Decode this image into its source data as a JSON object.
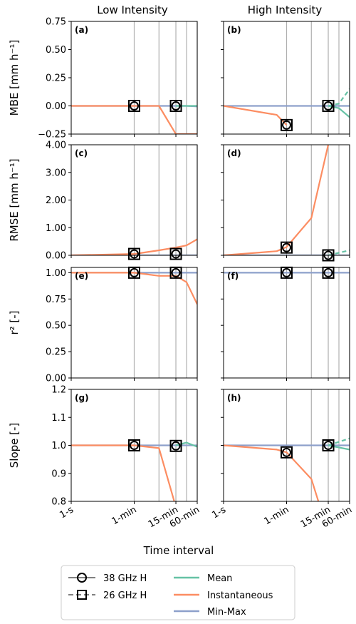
{
  "figure": {
    "col_titles": [
      "Low Intensity",
      "High Intensity"
    ],
    "xlabel": "Time interval",
    "x_ticks": [
      {
        "label": "1-s",
        "log_seconds": 0.0
      },
      {
        "label": "1-min",
        "log_seconds": 1.778
      },
      {
        "label": "15-min",
        "log_seconds": 2.954
      },
      {
        "label": "60-min",
        "log_seconds": 3.556
      }
    ],
    "x_grid_log_seconds": [
      1.778,
      2.477,
      2.954,
      3.255,
      3.556
    ],
    "xlim_log_seconds": [
      0,
      3.556
    ]
  },
  "legend": {
    "markers": [
      {
        "label": "38 GHz H",
        "symbol": "circle",
        "style": "solid"
      },
      {
        "label": "26 GHz H",
        "symbol": "square",
        "style": "dashed"
      }
    ],
    "methods": [
      {
        "label": "Mean",
        "color": "#66c2a5"
      },
      {
        "label": "Instantaneous",
        "color": "#fc8d62"
      },
      {
        "label": "Min-Max",
        "color": "#8da0cb"
      }
    ]
  },
  "colors": {
    "mean": "#66c2a5",
    "instantaneous": "#fc8d62",
    "minmax": "#8da0cb",
    "grid": "#b0b0b0"
  },
  "chart_data": [
    {
      "type": "line",
      "panel": "(a)",
      "ylabel": "MBE [mm h⁻¹]",
      "ylim": [
        -0.25,
        0.75
      ],
      "yticks": [
        -0.25,
        0,
        0.25,
        0.5,
        0.75
      ],
      "ytick_labels": [
        "−0.25",
        "0.00",
        "0.25",
        "0.50",
        "0.75"
      ],
      "series": [
        {
          "method": "minmax",
          "values": [
            [
              0,
              0
            ],
            [
              2.954,
              0
            ],
            [
              3.255,
              0
            ],
            [
              3.556,
              -0.005
            ]
          ]
        },
        {
          "method": "instantaneous",
          "values": [
            [
              0,
              0
            ],
            [
              2.477,
              0
            ],
            [
              2.954,
              -0.25
            ],
            [
              3.556,
              -0.25
            ]
          ]
        },
        {
          "method": "mean",
          "values": [
            [
              2.954,
              0
            ],
            [
              3.556,
              0
            ]
          ]
        }
      ],
      "markers": [
        [
          1.778,
          0
        ],
        [
          2.954,
          0
        ]
      ]
    },
    {
      "type": "line",
      "panel": "(b)",
      "ylabel": "",
      "ylim": [
        -0.25,
        0.75
      ],
      "yticks": [
        -0.25,
        0,
        0.25,
        0.5,
        0.75
      ],
      "ytick_labels": [
        "",
        "",
        "",
        "",
        ""
      ],
      "series": [
        {
          "method": "minmax",
          "values": [
            [
              0,
              0
            ],
            [
              2.954,
              0
            ],
            [
              3.556,
              0
            ]
          ]
        },
        {
          "method": "instantaneous",
          "values": [
            [
              0,
              0
            ],
            [
              1.5,
              -0.08
            ],
            [
              1.778,
              -0.17
            ]
          ]
        },
        {
          "method": "mean",
          "values": [
            [
              2.954,
              0
            ],
            [
              3.255,
              0.02
            ],
            [
              3.556,
              0.15
            ]
          ],
          "dashed": true
        },
        {
          "method": "mean",
          "values": [
            [
              2.954,
              0
            ],
            [
              3.255,
              -0.02
            ],
            [
              3.556,
              -0.1
            ]
          ]
        }
      ],
      "markers": [
        [
          1.778,
          -0.17
        ],
        [
          2.954,
          0
        ]
      ]
    },
    {
      "type": "line",
      "panel": "(c)",
      "ylabel": "RMSE [mm h⁻¹]",
      "ylim": [
        0,
        4
      ],
      "yticks": [
        0,
        1,
        2,
        3,
        4
      ],
      "ytick_labels": [
        "0.00",
        "1.00",
        "2.00",
        "3.00",
        "4.00"
      ],
      "series": [
        {
          "method": "minmax",
          "values": [
            [
              0,
              0
            ],
            [
              3.556,
              0
            ]
          ]
        },
        {
          "method": "instantaneous",
          "values": [
            [
              0,
              0
            ],
            [
              1.778,
              0.05
            ],
            [
              2.477,
              0.18
            ],
            [
              2.954,
              0.28
            ],
            [
              3.255,
              0.36
            ],
            [
              3.556,
              0.58
            ]
          ]
        }
      ],
      "markers": [
        [
          1.778,
          0.05
        ],
        [
          2.954,
          0.05
        ]
      ]
    },
    {
      "type": "line",
      "panel": "(d)",
      "ylabel": "",
      "ylim": [
        0,
        4
      ],
      "yticks": [
        0,
        1,
        2,
        3,
        4
      ],
      "ytick_labels": [
        "",
        "",
        "",
        "",
        ""
      ],
      "series": [
        {
          "method": "minmax",
          "values": [
            [
              0,
              0
            ],
            [
              3.556,
              0
            ]
          ]
        },
        {
          "method": "instantaneous",
          "values": [
            [
              0,
              0
            ],
            [
              1.5,
              0.15
            ],
            [
              1.778,
              0.3
            ],
            [
              2.477,
              1.35
            ],
            [
              2.954,
              4.0
            ]
          ]
        },
        {
          "method": "mean",
          "values": [
            [
              2.954,
              0
            ],
            [
              3.556,
              0.18
            ]
          ],
          "dashed": true
        }
      ],
      "markers": [
        [
          1.778,
          0.28
        ],
        [
          2.954,
          0
        ]
      ]
    },
    {
      "type": "line",
      "panel": "(e)",
      "ylabel": "r² [-]",
      "ylim": [
        0,
        1.05
      ],
      "yticks": [
        0,
        0.25,
        0.5,
        0.75,
        1
      ],
      "ytick_labels": [
        "0.00",
        "0.25",
        "0.50",
        "0.75",
        "1.00"
      ],
      "series": [
        {
          "method": "minmax",
          "values": [
            [
              0,
              1
            ],
            [
              3.556,
              1
            ]
          ]
        },
        {
          "method": "instantaneous",
          "values": [
            [
              0,
              1
            ],
            [
              1.778,
              1
            ],
            [
              2.477,
              0.97
            ],
            [
              2.954,
              0.97
            ],
            [
              3.255,
              0.91
            ],
            [
              3.556,
              0.7
            ]
          ]
        }
      ],
      "markers": [
        [
          1.778,
          1
        ],
        [
          2.954,
          1
        ]
      ]
    },
    {
      "type": "line",
      "panel": "(f)",
      "ylabel": "",
      "ylim": [
        0,
        1.05
      ],
      "yticks": [
        0,
        0.25,
        0.5,
        0.75,
        1
      ],
      "ytick_labels": [
        "",
        "",
        "",
        "",
        ""
      ],
      "series": [
        {
          "method": "minmax",
          "values": [
            [
              0,
              1
            ],
            [
              3.556,
              1
            ]
          ]
        }
      ],
      "markers": [
        [
          1.778,
          1
        ],
        [
          2.954,
          1
        ]
      ]
    },
    {
      "type": "line",
      "panel": "(g)",
      "ylabel": "Slope [-]",
      "ylim": [
        0.8,
        1.2
      ],
      "yticks": [
        0.8,
        0.9,
        1.0,
        1.1,
        1.2
      ],
      "ytick_labels": [
        "0.8",
        "0.9",
        "1.0",
        "1.1",
        "1.2"
      ],
      "series": [
        {
          "method": "minmax",
          "values": [
            [
              0,
              1
            ],
            [
              3.556,
              1
            ]
          ]
        },
        {
          "method": "instantaneous",
          "values": [
            [
              0,
              1
            ],
            [
              1.778,
              1
            ],
            [
              2.477,
              0.99
            ],
            [
              2.954,
              0.78
            ]
          ]
        },
        {
          "method": "mean",
          "values": [
            [
              2.954,
              1
            ],
            [
              3.255,
              1.01
            ],
            [
              3.556,
              0.995
            ]
          ]
        }
      ],
      "markers": [
        [
          1.778,
          1
        ],
        [
          2.954,
          0.998
        ]
      ]
    },
    {
      "type": "line",
      "panel": "(h)",
      "ylabel": "",
      "ylim": [
        0.8,
        1.2
      ],
      "yticks": [
        0.8,
        0.9,
        1.0,
        1.1,
        1.2
      ],
      "ytick_labels": [
        "",
        "",
        "",
        "",
        ""
      ],
      "series": [
        {
          "method": "minmax",
          "values": [
            [
              0,
              1
            ],
            [
              3.556,
              1
            ]
          ]
        },
        {
          "method": "instantaneous",
          "values": [
            [
              0,
              1
            ],
            [
              1.5,
              0.985
            ],
            [
              1.778,
              0.975
            ],
            [
              2.477,
              0.88
            ],
            [
              2.7,
              0.79
            ]
          ]
        },
        {
          "method": "mean",
          "values": [
            [
              2.954,
              1
            ],
            [
              3.556,
              1.025
            ]
          ],
          "dashed": true
        },
        {
          "method": "mean",
          "values": [
            [
              2.954,
              1
            ],
            [
              3.556,
              0.985
            ]
          ]
        }
      ],
      "markers": [
        [
          1.778,
          0.975
        ],
        [
          2.954,
          1
        ]
      ]
    }
  ]
}
